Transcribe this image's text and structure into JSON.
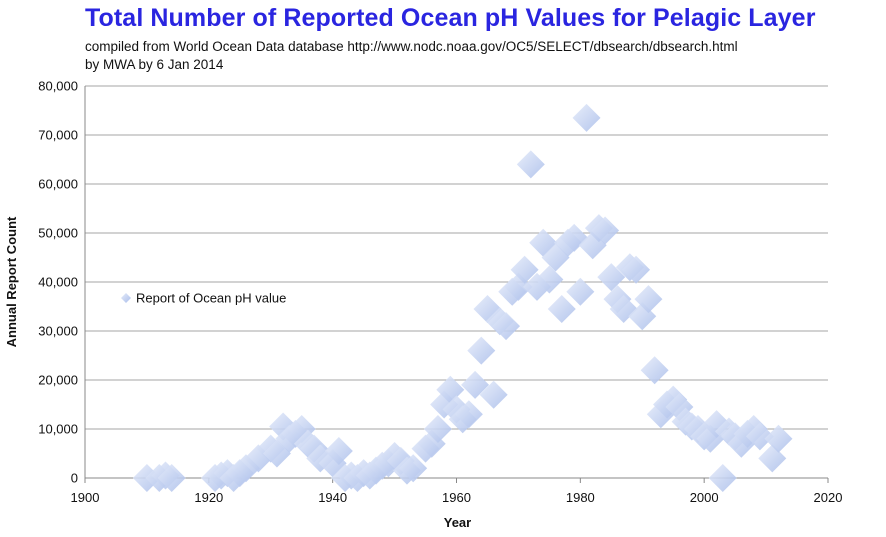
{
  "title": "Total Number of Reported Ocean pH Values for Pelagic Layer",
  "subtitle_line1": "compiled  from World Ocean Data database http://www.nodc.noaa.gov/OC5/SELECT/dbsearch/dbsearch.html",
  "subtitle_line2": "by MWA by 6 Jan 2014",
  "colors": {
    "marker_light": "#e6ecfa",
    "marker_dark": "#a9bdea",
    "grid": "#a6a6a6",
    "title": "#2a25e0"
  },
  "chart_data": {
    "type": "scatter",
    "title": "Total Number of Reported Ocean pH Values for Pelagic Layer",
    "xlabel": "Year",
    "ylabel": "Annual Report Count",
    "xlim": [
      1900,
      2020
    ],
    "ylim": [
      0,
      80000
    ],
    "x_ticks": [
      1900,
      1920,
      1940,
      1960,
      1980,
      2000,
      2020
    ],
    "y_ticks": [
      0,
      10000,
      20000,
      30000,
      40000,
      50000,
      60000,
      70000,
      80000
    ],
    "x_tick_labels": [
      "1900",
      "1920",
      "1940",
      "1960",
      "1980",
      "2000",
      "2020"
    ],
    "y_tick_labels": [
      "0",
      "10,000",
      "20,000",
      "30,000",
      "40,000",
      "50,000",
      "60,000",
      "70,000",
      "80,000"
    ],
    "grid": "horizontal",
    "legend_position": "left-middle",
    "series": [
      {
        "name": "Report of Ocean pH value",
        "marker": "diamond",
        "points": [
          [
            1910,
            0
          ],
          [
            1912,
            0
          ],
          [
            1913,
            500
          ],
          [
            1914,
            0
          ],
          [
            1921,
            0
          ],
          [
            1922,
            500
          ],
          [
            1923,
            1000
          ],
          [
            1924,
            0
          ],
          [
            1925,
            1000
          ],
          [
            1926,
            2000
          ],
          [
            1928,
            4000
          ],
          [
            1930,
            6000
          ],
          [
            1931,
            5000
          ],
          [
            1932,
            10500
          ],
          [
            1933,
            8000
          ],
          [
            1934,
            9000
          ],
          [
            1935,
            10000
          ],
          [
            1936,
            7000
          ],
          [
            1937,
            6000
          ],
          [
            1938,
            4000
          ],
          [
            1940,
            3000
          ],
          [
            1941,
            5500
          ],
          [
            1942,
            0
          ],
          [
            1943,
            500
          ],
          [
            1944,
            0
          ],
          [
            1945,
            1000
          ],
          [
            1946,
            500
          ],
          [
            1947,
            1500
          ],
          [
            1948,
            2500
          ],
          [
            1949,
            3000
          ],
          [
            1950,
            4500
          ],
          [
            1951,
            3500
          ],
          [
            1952,
            1500
          ],
          [
            1953,
            2000
          ],
          [
            1955,
            6000
          ],
          [
            1956,
            7000
          ],
          [
            1957,
            10000
          ],
          [
            1958,
            15000
          ],
          [
            1959,
            18000
          ],
          [
            1960,
            14000
          ],
          [
            1961,
            12000
          ],
          [
            1962,
            13000
          ],
          [
            1963,
            19000
          ],
          [
            1964,
            26000
          ],
          [
            1965,
            34500
          ],
          [
            1966,
            17000
          ],
          [
            1967,
            32000
          ],
          [
            1968,
            31000
          ],
          [
            1969,
            38000
          ],
          [
            1970,
            39000
          ],
          [
            1971,
            42500
          ],
          [
            1972,
            64000
          ],
          [
            1973,
            39000
          ],
          [
            1974,
            48000
          ],
          [
            1975,
            40500
          ],
          [
            1976,
            45000
          ],
          [
            1977,
            34500
          ],
          [
            1978,
            48000
          ],
          [
            1979,
            49000
          ],
          [
            1980,
            38000
          ],
          [
            1981,
            73500
          ],
          [
            1982,
            47500
          ],
          [
            1983,
            51000
          ],
          [
            1984,
            50500
          ],
          [
            1985,
            41000
          ],
          [
            1986,
            36500
          ],
          [
            1987,
            34500
          ],
          [
            1988,
            43000
          ],
          [
            1989,
            42500
          ],
          [
            1990,
            33000
          ],
          [
            1991,
            36500
          ],
          [
            1992,
            22000
          ],
          [
            1993,
            13000
          ],
          [
            1994,
            15000
          ],
          [
            1995,
            16000
          ],
          [
            1996,
            14500
          ],
          [
            1997,
            11500
          ],
          [
            1998,
            10500
          ],
          [
            1999,
            10000
          ],
          [
            2000,
            8500
          ],
          [
            2001,
            8000
          ],
          [
            2002,
            11000
          ],
          [
            2003,
            0
          ],
          [
            2004,
            9500
          ],
          [
            2005,
            8500
          ],
          [
            2006,
            7000
          ],
          [
            2007,
            9000
          ],
          [
            2008,
            10000
          ],
          [
            2009,
            8500
          ],
          [
            2011,
            4000
          ],
          [
            2012,
            8000
          ]
        ]
      }
    ]
  }
}
